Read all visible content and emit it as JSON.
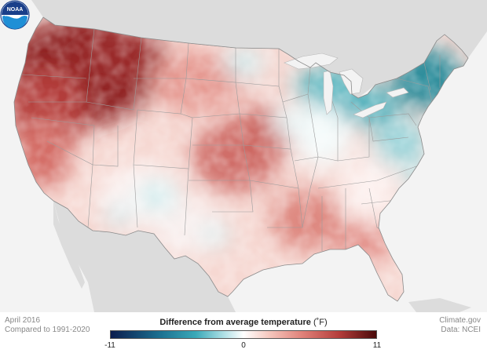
{
  "footer": {
    "date": "April 2016",
    "baseline": "Compared to 1991-2020",
    "credit": "Climate.gov",
    "source": "Data: NCEI"
  },
  "legend": {
    "title": "Difference from average temperature",
    "unit": "(˚F)",
    "min": "-11",
    "mid": "0",
    "max": "11",
    "colors": [
      "#0b1c4d",
      "#1b6e8f",
      "#3aa9b8",
      "#a8dde3",
      "#ffffff",
      "#f5c5bc",
      "#e0827a",
      "#b43d3b",
      "#4a0a0a"
    ]
  },
  "logo": {
    "text": "NOAA"
  },
  "colors": {
    "background": "#f3f3f3",
    "land": "#dcdcdc",
    "warm_strong": "#8e2323",
    "warm": "#cf6a63",
    "warm_light": "#f2b8b0",
    "neutral": "#fbf5f4",
    "cool": "#66c2c9",
    "cool_strong": "#2f8e9c"
  }
}
